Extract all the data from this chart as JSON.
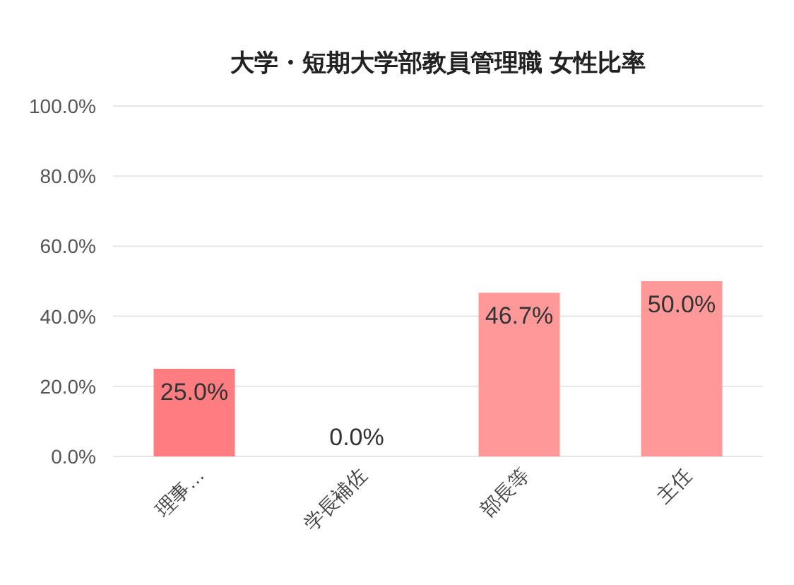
{
  "chart_data": {
    "type": "bar",
    "title": "大学・短期大学部教員管理職 女性比率",
    "categories": [
      "理事…",
      "学長補佐",
      "部長等",
      "主任"
    ],
    "values": [
      25.0,
      0.0,
      46.7,
      50.0
    ],
    "colors": [
      "#ff7c80",
      "#ff9999",
      "#ff9999",
      "#ff9999"
    ],
    "ylim": [
      0,
      100
    ],
    "yticks": [
      {
        "value": 0,
        "label": "0.0%"
      },
      {
        "value": 20,
        "label": "20.0%"
      },
      {
        "value": 40,
        "label": "40.0%"
      },
      {
        "value": 60,
        "label": "60.0%"
      },
      {
        "value": 80,
        "label": "80.0%"
      },
      {
        "value": 100,
        "label": "100.0%"
      }
    ],
    "value_labels": [
      "25.0%",
      "0.0%",
      "46.7%",
      "50.0%"
    ],
    "grid": "y"
  }
}
